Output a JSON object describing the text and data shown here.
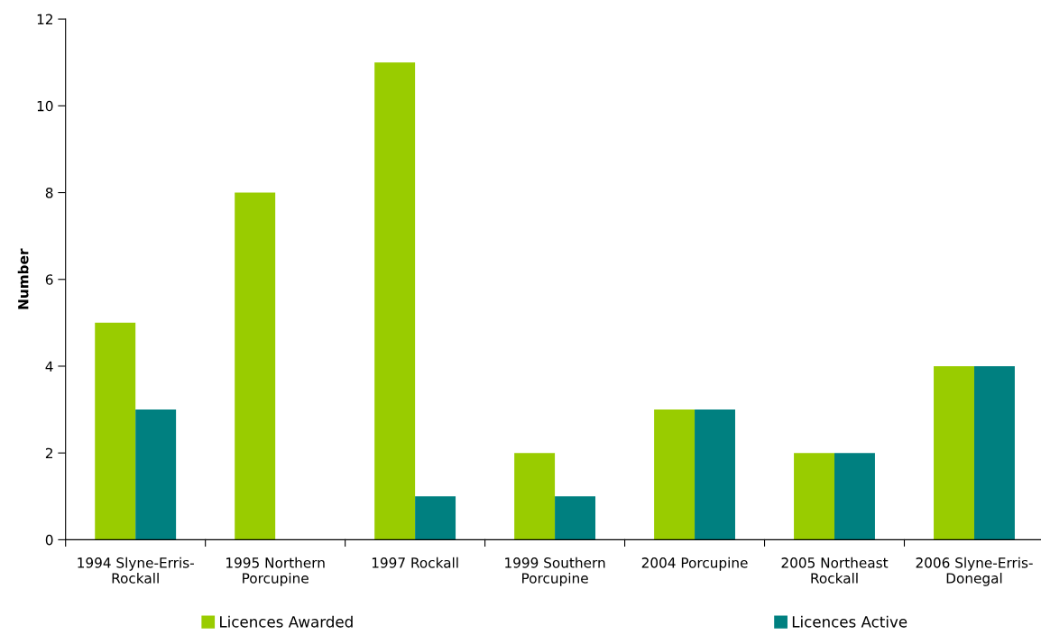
{
  "chart_data": {
    "type": "bar",
    "ylabel": "Number",
    "categories": [
      "1994 Slyne-Erris-\nRockall",
      "1995 Northern\nPorcupine",
      "1997 Rockall",
      "1999 Southern\nPorcupine",
      "2004 Porcupine",
      "2005 Northeast\nRockall",
      "2006 Slyne-Erris-\nDonegal"
    ],
    "series": [
      {
        "name": "Licences Awarded",
        "color": "#99cc00",
        "values": [
          5,
          8,
          11,
          2,
          3,
          2,
          4
        ]
      },
      {
        "name": "Licences Active",
        "color": "#008080",
        "values": [
          3,
          0,
          1,
          1,
          3,
          2,
          4
        ]
      }
    ],
    "ylim": [
      0,
      12
    ],
    "yticks": [
      0,
      2,
      4,
      6,
      8,
      10,
      12
    ],
    "grid": false,
    "legend": "bottom"
  }
}
